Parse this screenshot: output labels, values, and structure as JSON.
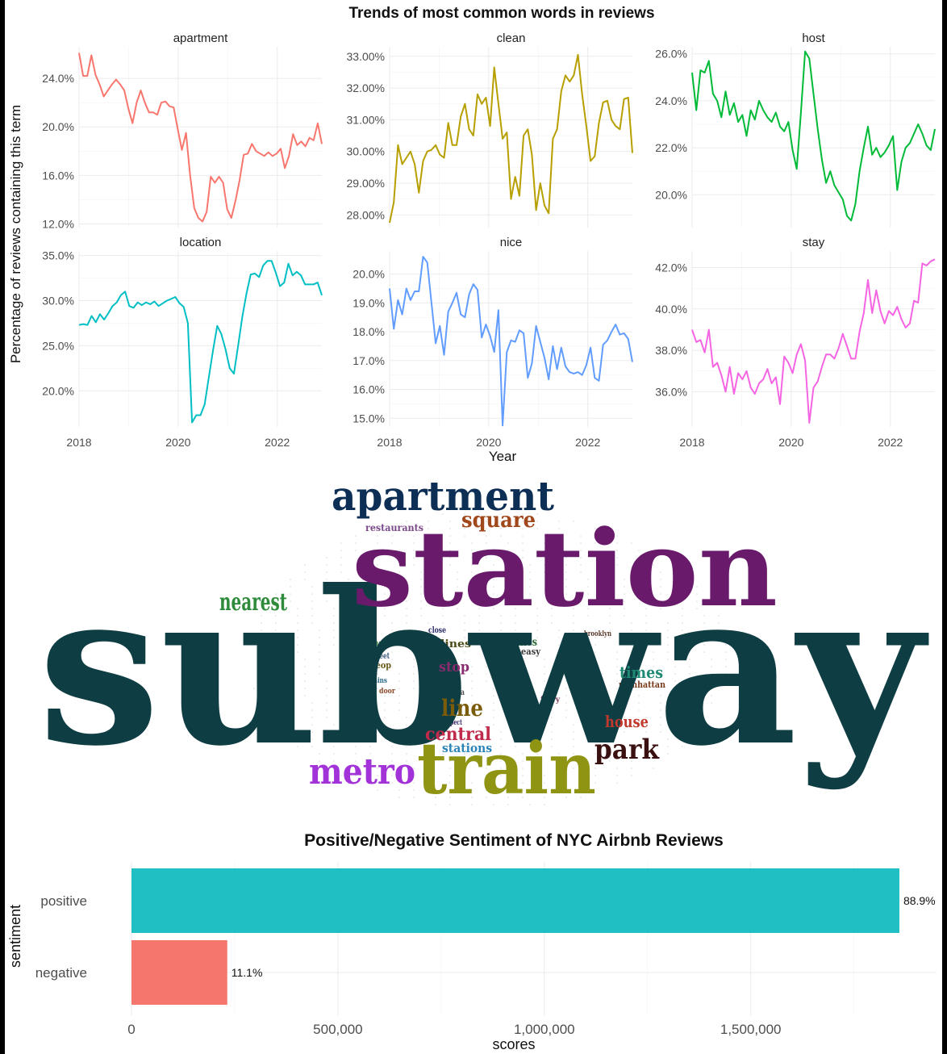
{
  "trends_title": "Trends of most common words in reviews",
  "trends_ylabel": "Percentage of reviews containing this term",
  "trends_xlabel": "Year",
  "year_ticks": [
    "2018",
    "2020",
    "2022"
  ],
  "sentiment_title": "Positive/Negative Sentiment of NYC Airbnb Reviews",
  "sentiment_ylabel": "sentiment",
  "sentiment_xlabel": "scores",
  "chart_data": [
    {
      "type": "line",
      "title": "Trends of most common words in reviews",
      "xlabel": "Year",
      "ylabel": "Percentage of reviews containing this term",
      "facets": [
        {
          "name": "apartment",
          "color": "#F8766D",
          "xlim": [
            2018,
            2022.9
          ],
          "ylim": [
            11.7,
            26.6
          ],
          "yticks": [
            12,
            16,
            20,
            24
          ],
          "ytick_labels": [
            "12.0%",
            "16.0%",
            "20.0%",
            "24.0%"
          ],
          "values": [
            26.1,
            24.2,
            24.2,
            25.9,
            24.3,
            23.5,
            22.5,
            23.0,
            23.5,
            23.9,
            23.5,
            23.0,
            21.5,
            20.3,
            22.0,
            23.0,
            22.0,
            21.2,
            21.2,
            21.0,
            22.0,
            22.1,
            21.7,
            21.6,
            19.8,
            18.1,
            19.5,
            16.0,
            13.3,
            12.5,
            12.2,
            13.0,
            15.9,
            15.4,
            15.9,
            15.4,
            13.2,
            12.5,
            13.9,
            15.6,
            17.7,
            17.8,
            18.6,
            18.0,
            17.8,
            17.6,
            17.9,
            17.6,
            17.8,
            18.2,
            16.6,
            17.6,
            19.4,
            18.5,
            18.8,
            18.4,
            19.1,
            18.9,
            20.3,
            18.6
          ]
        },
        {
          "name": "clean",
          "color": "#B79F00",
          "xlim": [
            2018,
            2022.9
          ],
          "ylim": [
            27.6,
            33.3
          ],
          "yticks": [
            28,
            29,
            30,
            31,
            32,
            33
          ],
          "ytick_labels": [
            "28.00%",
            "29.00%",
            "30.00%",
            "31.00%",
            "32.00%",
            "33.00%"
          ],
          "values": [
            27.75,
            28.4,
            30.2,
            29.6,
            29.8,
            30.0,
            29.6,
            28.7,
            29.7,
            30.0,
            30.05,
            30.2,
            29.9,
            29.8,
            30.9,
            30.2,
            30.2,
            31.1,
            31.5,
            30.7,
            30.5,
            31.8,
            31.5,
            31.7,
            30.8,
            32.65,
            31.5,
            30.4,
            30.6,
            28.5,
            29.2,
            28.6,
            30.5,
            30.7,
            29.9,
            28.15,
            29.0,
            28.3,
            28.05,
            30.4,
            30.7,
            31.9,
            32.4,
            32.2,
            32.4,
            33.05,
            31.8,
            30.8,
            29.7,
            29.85,
            30.9,
            31.55,
            31.6,
            31.0,
            30.8,
            30.7,
            31.65,
            31.7,
            29.95
          ]
        },
        {
          "name": "host",
          "color": "#00BA38",
          "xlim": [
            2018,
            2022.9
          ],
          "ylim": [
            18.6,
            26.3
          ],
          "yticks": [
            20,
            22,
            24,
            26
          ],
          "ytick_labels": [
            "20.0%",
            "22.0%",
            "24.0%",
            "26.0%"
          ],
          "values": [
            25.2,
            23.6,
            25.3,
            25.2,
            25.7,
            24.3,
            24.0,
            23.3,
            24.4,
            23.4,
            23.9,
            23.1,
            23.4,
            22.5,
            23.6,
            23.2,
            24.0,
            23.6,
            23.3,
            23.1,
            23.5,
            22.9,
            22.7,
            23.1,
            21.9,
            21.1,
            23.5,
            26.1,
            25.8,
            24.3,
            22.8,
            21.5,
            20.5,
            21.0,
            20.4,
            20.1,
            19.8,
            19.1,
            18.9,
            19.6,
            21.0,
            22.0,
            22.9,
            21.7,
            22.0,
            21.6,
            21.8,
            22.1,
            22.5,
            20.2,
            21.4,
            22.0,
            22.2,
            22.6,
            23.0,
            22.6,
            22.1,
            21.9,
            22.8
          ]
        },
        {
          "name": "location",
          "color": "#00BFC4",
          "xlim": [
            2018,
            2022.9
          ],
          "ylim": [
            16.0,
            35.5
          ],
          "yticks": [
            20,
            25,
            30,
            35
          ],
          "ytick_labels": [
            "20.0%",
            "25.0%",
            "30.0%",
            "35.0%"
          ],
          "values": [
            27.3,
            27.4,
            27.3,
            28.3,
            27.6,
            28.5,
            27.9,
            28.6,
            29.4,
            29.8,
            30.6,
            31.0,
            29.4,
            29.2,
            29.8,
            29.5,
            29.8,
            29.6,
            29.9,
            29.4,
            29.7,
            30.0,
            30.2,
            30.4,
            29.7,
            29.3,
            27.5,
            16.5,
            17.3,
            17.3,
            18.5,
            21.5,
            24.5,
            27.2,
            26.3,
            24.6,
            22.5,
            21.9,
            25.0,
            28.2,
            30.8,
            32.9,
            33.0,
            32.6,
            33.9,
            34.4,
            34.4,
            33.1,
            31.6,
            32.0,
            34.1,
            32.8,
            33.2,
            32.8,
            31.8,
            31.8,
            31.8,
            32.0,
            30.6
          ]
        },
        {
          "name": "nice",
          "color": "#619CFF",
          "xlim": [
            2018,
            2022.9
          ],
          "ylim": [
            14.7,
            20.8
          ],
          "yticks": [
            15,
            16,
            17,
            18,
            19,
            20
          ],
          "ytick_labels": [
            "15.0%",
            "16.0%",
            "17.0%",
            "18.0%",
            "19.0%",
            "20.0%"
          ],
          "values": [
            19.5,
            18.1,
            19.1,
            18.6,
            19.5,
            19.1,
            19.4,
            19.4,
            20.6,
            20.4,
            19.0,
            17.6,
            18.2,
            17.2,
            18.7,
            19.0,
            19.35,
            18.6,
            18.5,
            19.3,
            19.65,
            19.45,
            17.8,
            18.25,
            17.85,
            17.3,
            18.75,
            14.75,
            17.3,
            17.7,
            17.65,
            18.05,
            17.95,
            16.4,
            16.9,
            18.2,
            17.65,
            17.1,
            16.35,
            17.5,
            16.7,
            17.45,
            16.8,
            16.6,
            16.55,
            16.6,
            16.5,
            16.85,
            17.45,
            16.4,
            16.3,
            17.55,
            17.7,
            18.0,
            18.25,
            17.9,
            17.95,
            17.75,
            16.95
          ]
        },
        {
          "name": "stay",
          "color": "#F564E3",
          "xlim": [
            2018,
            2022.9
          ],
          "ylim": [
            34.3,
            42.8
          ],
          "yticks": [
            36,
            38,
            40,
            42
          ],
          "ytick_labels": [
            "36.0%",
            "38.0%",
            "40.0%",
            "42.0%"
          ],
          "values": [
            39.0,
            38.4,
            38.5,
            37.9,
            39.0,
            37.2,
            37.4,
            36.8,
            36.0,
            37.2,
            35.9,
            36.9,
            36.6,
            37.0,
            36.2,
            35.9,
            36.4,
            36.6,
            37.1,
            36.4,
            36.7,
            35.4,
            37.7,
            37.4,
            36.9,
            37.8,
            38.3,
            37.5,
            34.5,
            36.2,
            36.5,
            37.2,
            37.8,
            37.8,
            37.6,
            38.1,
            38.8,
            38.2,
            37.6,
            37.6,
            38.9,
            39.8,
            41.4,
            39.8,
            40.9,
            39.9,
            39.3,
            39.9,
            39.7,
            40.1,
            39.5,
            39.1,
            39.3,
            40.4,
            40.3,
            42.2,
            42.1,
            42.3,
            42.4
          ]
        }
      ]
    },
    {
      "type": "bar",
      "orientation": "horizontal",
      "title": "Positive/Negative Sentiment of NYC Airbnb Reviews",
      "xlabel": "scores",
      "ylabel": "sentiment",
      "categories": [
        "positive",
        "negative"
      ],
      "values": [
        1860000,
        232000
      ],
      "labels": [
        "88.9%",
        "11.1%"
      ],
      "colors": [
        "#1FBFC3",
        "#F4766D"
      ],
      "xlim": [
        0,
        1950000
      ],
      "xticks": [
        0,
        500000,
        1000000,
        1500000
      ],
      "xtick_labels": [
        "0",
        "500,000",
        "1,000,000",
        "1,500,000"
      ]
    }
  ],
  "wordcloud": {
    "words": [
      {
        "text": "subway",
        "color": "#0f3d44"
      },
      {
        "text": "station",
        "color": "#6a1a6b"
      },
      {
        "text": "apartment",
        "color": "#0d2f55"
      },
      {
        "text": "train",
        "color": "#8f9413"
      },
      {
        "text": "square",
        "color": "#a0471b"
      },
      {
        "text": "nearest",
        "color": "#2e8b3b"
      },
      {
        "text": "metro",
        "color": "#a233d8"
      },
      {
        "text": "park",
        "color": "#3b1010"
      },
      {
        "text": "times",
        "color": "#1f8a74"
      },
      {
        "text": "house",
        "color": "#c0392b"
      },
      {
        "text": "central",
        "color": "#c02a4b"
      },
      {
        "text": "stations",
        "color": "#2a84b8"
      },
      {
        "text": "line",
        "color": "#7a5c0a"
      },
      {
        "text": "stop",
        "color": "#8a2b6e"
      },
      {
        "text": "lines",
        "color": "#4a4a1a"
      },
      {
        "text": "restaurants",
        "color": "#7d4a8c"
      },
      {
        "text": "takes",
        "color": "#2e6b3b"
      },
      {
        "text": "manhattan",
        "color": "#7a3a1a"
      },
      {
        "text": "bus",
        "color": "#2a3a8c"
      },
      {
        "text": "easy",
        "color": "#3a3a3a"
      },
      {
        "text": "peop",
        "color": "#6a5a1a"
      },
      {
        "text": "beach",
        "color": "#3a7a3a"
      },
      {
        "text": "street",
        "color": "#3a5a7a"
      },
      {
        "text": "close",
        "color": "#2a2a6a"
      },
      {
        "text": "ferry",
        "color": "#7a3a5a"
      },
      {
        "text": "brooklyn",
        "color": "#5a3a2a"
      },
      {
        "text": "door",
        "color": "#8a4a2a"
      },
      {
        "text": "trains",
        "color": "#2a6a8a"
      },
      {
        "text": "area",
        "color": "#5a5a5a"
      },
      {
        "text": "prospect",
        "color": "#3a2a6a"
      }
    ]
  }
}
